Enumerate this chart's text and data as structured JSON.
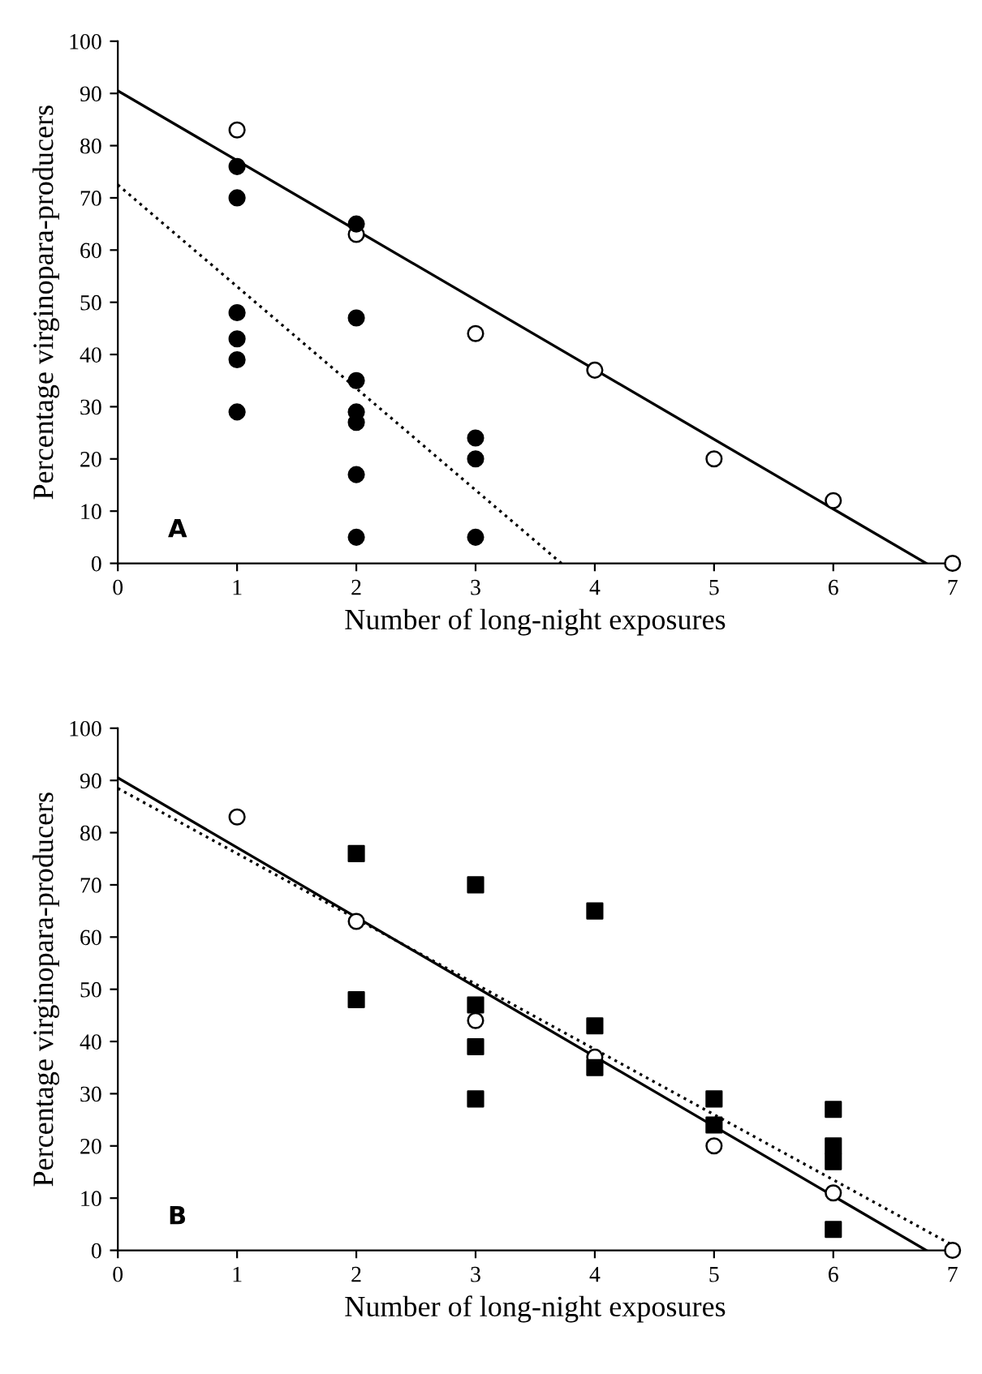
{
  "chart_data": [
    {
      "type": "scatter",
      "xlabel": "Number of long-night exposures",
      "ylabel": "Percentage virginopara-producers",
      "annotations": [
        "A"
      ],
      "xlim": [
        0,
        7
      ],
      "ylim": [
        0,
        100
      ],
      "xticks": [
        0,
        1,
        2,
        3,
        4,
        5,
        6,
        7
      ],
      "yticks": [
        0,
        10,
        20,
        30,
        40,
        50,
        60,
        70,
        80,
        90,
        100
      ],
      "grid": false,
      "legend": false,
      "series": [
        {
          "marker": "circle",
          "color": "#ffffff",
          "x": [
            1,
            2,
            3,
            4,
            5,
            6,
            7
          ],
          "values": [
            83,
            63,
            44,
            37,
            20,
            12,
            0
          ]
        },
        {
          "marker": "circle",
          "color": "#000000",
          "x": [
            1,
            1,
            1,
            1,
            1,
            1,
            2,
            2,
            2,
            2,
            2,
            2,
            2,
            3,
            3,
            3
          ],
          "values": [
            76,
            70,
            48,
            43,
            39,
            29,
            65,
            47,
            35,
            29,
            27,
            17,
            5,
            24,
            20,
            5
          ]
        },
        {
          "type": "line",
          "line_style": "solid",
          "color": "#000000",
          "x": [
            0,
            6.78
          ],
          "values": [
            90.5,
            0
          ]
        },
        {
          "type": "line",
          "line_style": "dotted",
          "color": "#000000",
          "x": [
            0,
            3.72
          ],
          "values": [
            72.5,
            0
          ]
        }
      ]
    },
    {
      "type": "scatter",
      "xlabel": "Number of long-night exposures",
      "ylabel": "Percentage virginopara-producers",
      "annotations": [
        "B"
      ],
      "xlim": [
        0,
        7
      ],
      "ylim": [
        0,
        100
      ],
      "xticks": [
        0,
        1,
        2,
        3,
        4,
        5,
        6,
        7
      ],
      "yticks": [
        0,
        10,
        20,
        30,
        40,
        50,
        60,
        70,
        80,
        90,
        100
      ],
      "grid": false,
      "legend": false,
      "series": [
        {
          "marker": "circle",
          "color": "#ffffff",
          "x": [
            1,
            2,
            3,
            4,
            5,
            6,
            7
          ],
          "values": [
            83,
            63,
            44,
            37,
            20,
            11,
            0
          ]
        },
        {
          "marker": "square",
          "color": "#000000",
          "x": [
            2,
            2,
            3,
            3,
            3,
            3,
            4,
            4,
            4,
            5,
            5,
            6,
            6,
            6,
            6
          ],
          "values": [
            76,
            48,
            70,
            47,
            39,
            29,
            65,
            43,
            35,
            29,
            24,
            27,
            20,
            17,
            4
          ]
        },
        {
          "type": "line",
          "line_style": "solid",
          "color": "#000000",
          "x": [
            0,
            6.78
          ],
          "values": [
            90.5,
            0
          ]
        },
        {
          "type": "line",
          "line_style": "dotted",
          "color": "#000000",
          "x": [
            0,
            7
          ],
          "values": [
            88.5,
            1
          ]
        }
      ]
    }
  ]
}
